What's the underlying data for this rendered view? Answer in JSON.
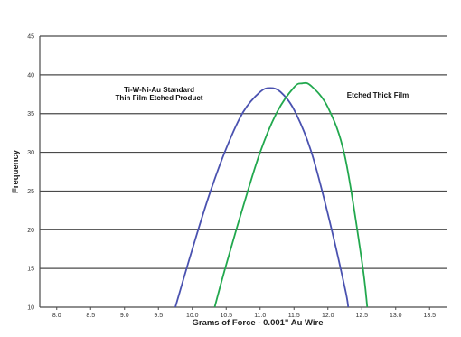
{
  "chart_data": {
    "type": "line",
    "title": "",
    "xlabel": "Grams of Force - 0.001\" Au Wire",
    "ylabel": "Frequency",
    "xlim": [
      7.75,
      13.75
    ],
    "ylim": [
      10,
      45
    ],
    "x_ticks": [
      "8.0",
      "8.5",
      "9.0",
      "9.5",
      "10.0",
      "10.5",
      "11.0",
      "11.5",
      "12.0",
      "12.5",
      "13.0",
      "13.5"
    ],
    "y_ticks": [
      "10",
      "15",
      "20",
      "25",
      "30",
      "35",
      "40",
      "45"
    ],
    "grid": "horizontal",
    "annotations": [
      {
        "lines": [
          "Ti-W-Ni-Au  Standard",
          "Thin Film  Etched Product"
        ]
      },
      {
        "lines": [
          "Etched Thick Film"
        ]
      }
    ],
    "series": [
      {
        "color": "#4a52b0",
        "x": [
          9.75,
          10.0,
          10.25,
          10.5,
          10.75,
          11.0,
          11.15,
          11.3,
          11.5,
          11.75,
          12.0,
          12.25,
          12.3
        ],
        "y": [
          10,
          17.5,
          24.5,
          30.5,
          35.2,
          37.8,
          38.3,
          37.8,
          35.5,
          30.2,
          22.0,
          12.5,
          10
        ]
      },
      {
        "color": "#22a84e",
        "x": [
          10.33,
          10.5,
          10.75,
          11.0,
          11.25,
          11.5,
          11.62,
          11.75,
          12.0,
          12.25,
          12.5,
          12.58
        ],
        "y": [
          10,
          15.5,
          23.0,
          30.0,
          35.2,
          38.4,
          38.9,
          38.6,
          35.8,
          29.5,
          16.0,
          10
        ]
      }
    ]
  }
}
